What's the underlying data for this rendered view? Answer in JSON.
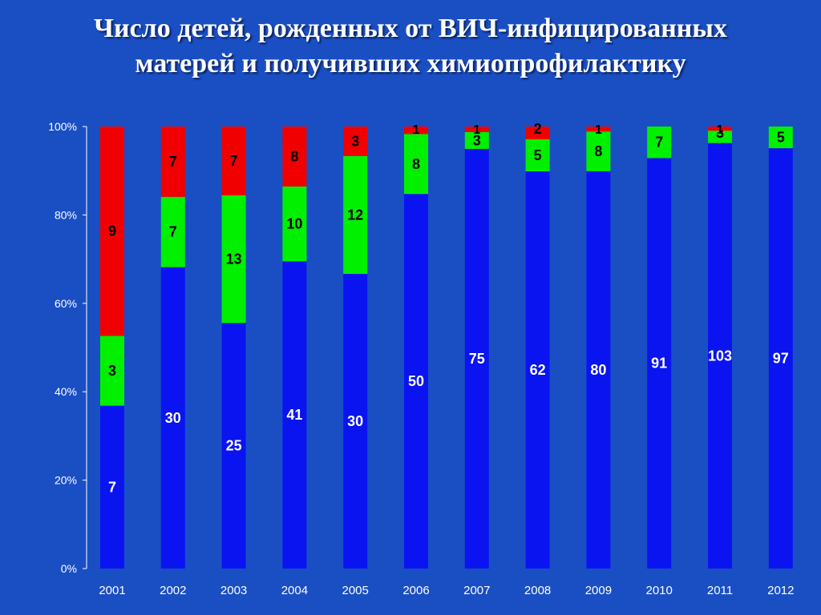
{
  "slide": {
    "title_line1": "Число детей, рожденных от ВИЧ-инфицированных",
    "title_line2": "матерей и получивших химиопрофилактику"
  },
  "chart_data": {
    "type": "bar",
    "stacked": "percent",
    "title": "Число детей, рожденных от ВИЧ-инфицированных матерей и получивших химиопрофилактику",
    "categories": [
      "2001",
      "2002",
      "2003",
      "2004",
      "2005",
      "2006",
      "2007",
      "2008",
      "2009",
      "2010",
      "2011",
      "2012"
    ],
    "series": [
      {
        "color": "#0a14f0",
        "values": [
          7,
          30,
          25,
          41,
          30,
          50,
          75,
          62,
          80,
          91,
          103,
          97
        ]
      },
      {
        "color": "#00f000",
        "values": [
          3,
          7,
          13,
          10,
          12,
          8,
          3,
          5,
          8,
          7,
          3,
          5
        ]
      },
      {
        "color": "#f00000",
        "values": [
          9,
          7,
          7,
          8,
          3,
          1,
          1,
          2,
          1,
          0,
          1,
          0
        ]
      }
    ],
    "y_ticks": [
      "0%",
      "20%",
      "40%",
      "60%",
      "80%",
      "100%"
    ],
    "ylim": [
      0,
      100
    ],
    "grid": false,
    "legend": "none",
    "axis_color": "#ffffff",
    "label_colors": [
      "#ffffff",
      "#000000",
      "#000000"
    ]
  }
}
